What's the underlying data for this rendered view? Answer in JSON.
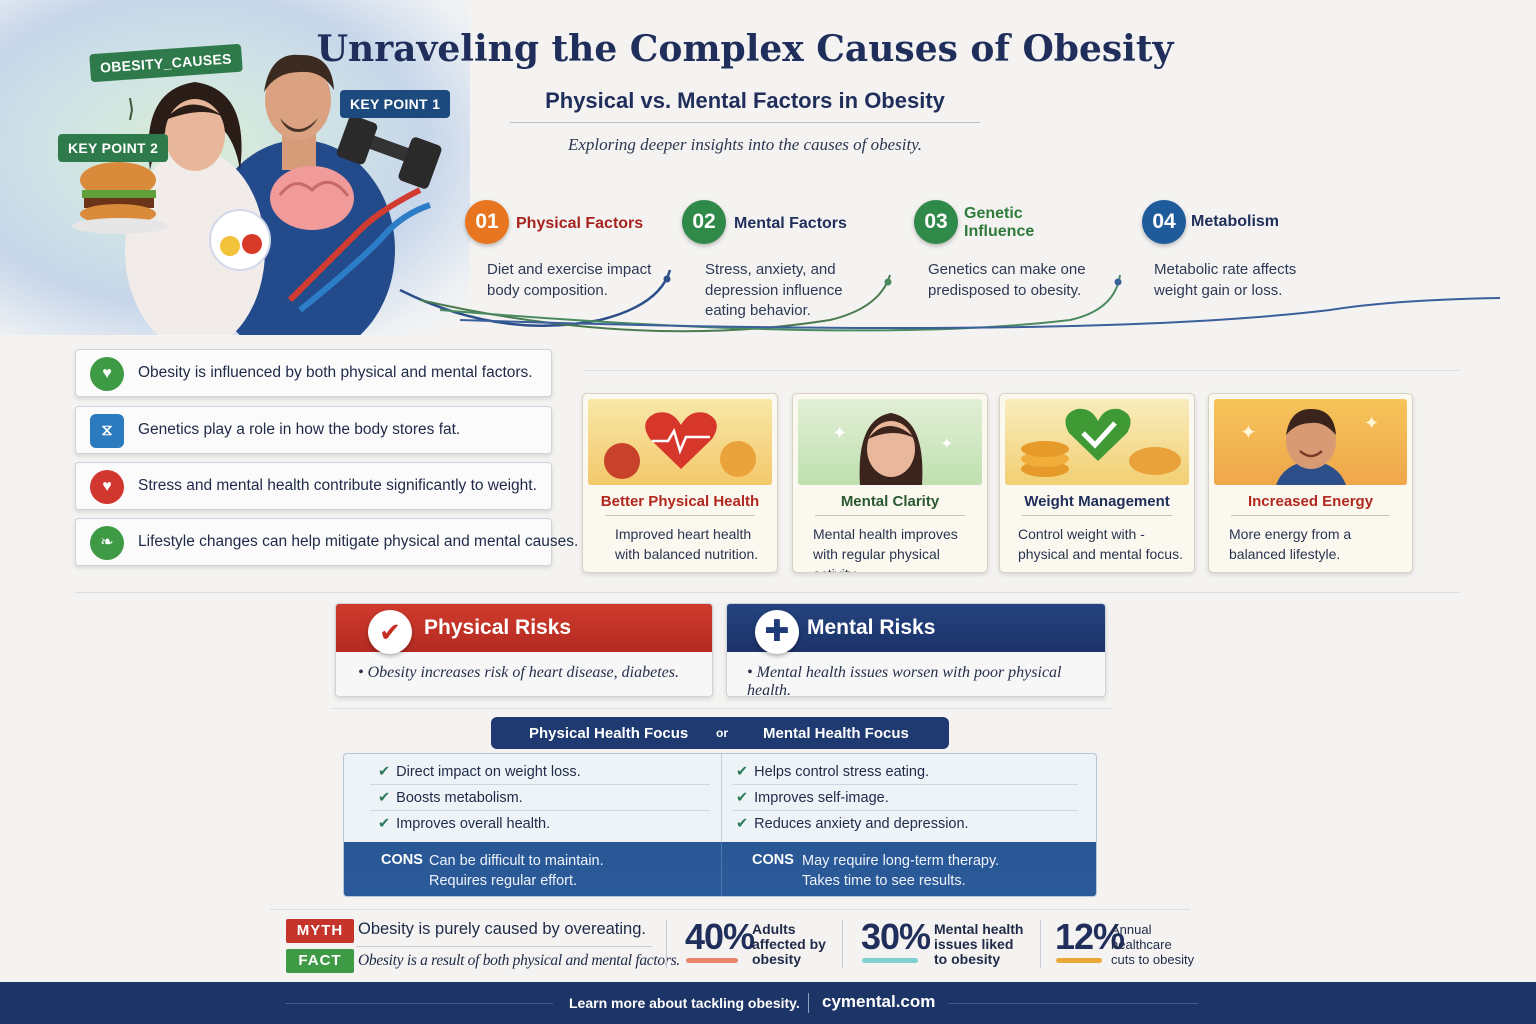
{
  "hero": {
    "tag_causes": "OBESITY_CAUSES",
    "tag_key1": "KEY POINT 1",
    "tag_key2": "KEY POINT 2"
  },
  "header": {
    "title": "Unraveling the Complex Causes of Obesity",
    "subtitle": "Physical vs. Mental Factors in Obesity",
    "tagline": "Exploring deeper insights into the causes of obesity."
  },
  "steps": [
    {
      "number": "01",
      "title": "Physical Factors",
      "desc": "Diet and exercise impact body composition.",
      "color": "#e8751f",
      "title_color": "#a8231e"
    },
    {
      "number": "02",
      "title": "Mental Factors",
      "desc": "Stress, anxiety, and depression influence eating behavior.",
      "color": "#2f8a49",
      "title_color": "#1f2e5a"
    },
    {
      "number": "03",
      "title": "Genetic Influence",
      "desc": "Genetics can make one predisposed to obesity.",
      "color": "#2f8a49",
      "title_color": "#2f7a3a"
    },
    {
      "number": "04",
      "title": "Metabolism",
      "desc": "Metabolic rate affects weight gain or loss.",
      "color": "#1e5b9a",
      "title_color": "#1f2e5a"
    }
  ],
  "facts": [
    {
      "text": "Obesity is influenced by both physical and mental factors.",
      "icon": "heart-check-icon",
      "color": "#3f9a45"
    },
    {
      "text": "Genetics play a role in how the body stores fat.",
      "icon": "dna-icon",
      "color": "#2d7bbf"
    },
    {
      "text": "Stress and mental health contribute significantly to weight.",
      "icon": "heart-icon",
      "color": "#d1362f"
    },
    {
      "text": "Lifestyle changes can help mitigate physical and mental causes.",
      "icon": "leaf-icon",
      "color": "#3f9a45"
    }
  ],
  "cards": [
    {
      "title": "Better Physical Health",
      "desc": "Improved heart health with balanced nutrition.",
      "title_color": "#b2281f",
      "art": "heart-fruit-icon"
    },
    {
      "title": "Mental Clarity",
      "desc": "Mental health improves with regular physical activity",
      "title_color": "#2a5a30",
      "art": "woman-thinking-icon"
    },
    {
      "title": "Weight Management",
      "desc": "Control weight with - physical and mental focus.",
      "title_color": "#1f2e5a",
      "art": "heart-check-food-icon"
    },
    {
      "title": "Increased Energy",
      "desc": "More energy from a balanced lifestyle.",
      "title_color": "#b2281f",
      "art": "smiling-boy-icon"
    }
  ],
  "risks": {
    "physical": {
      "title": "Physical Risks",
      "text": "Obesity increases risk of heart disease, diabetes.",
      "color": "#c23327"
    },
    "mental": {
      "title": "Mental Risks",
      "text": "Mental health issues worsen with poor physical health.",
      "color": "#1f3a78"
    }
  },
  "comparison": {
    "left_tab": "Physical Health Focus",
    "vs": "or",
    "right_tab": "Mental Health Focus",
    "left_pros": [
      "Direct impact on weight loss.",
      "Boosts metabolism.",
      "Improves overall health."
    ],
    "right_pros": [
      "Helps control stress eating.",
      "Improves self-image.",
      "Reduces anxiety and depression."
    ],
    "cons_label": "CONS",
    "left_cons": [
      "Can be difficult to maintain.",
      "Requires regular effort."
    ],
    "right_cons": [
      "May require long-term therapy.",
      "Takes time to see results."
    ]
  },
  "myth_fact": {
    "myth_label": "MYTH",
    "myth_text": "Obesity is purely caused by overeating.",
    "fact_label": "FACT",
    "fact_text": "Obesity is a result of both physical and mental factors."
  },
  "stats": [
    {
      "value": "40%",
      "label": "Adults affected by obesity",
      "bar_color": "#e9836b"
    },
    {
      "value": "30%",
      "label": "Mental health issues liked to obesity",
      "bar_color": "#7fd0d0"
    },
    {
      "value": "12%",
      "label": "Annual healthcare cuts to obesity",
      "bar_color": "#e8a83a"
    }
  ],
  "footer": {
    "cta": "Learn more about tackling obesity.",
    "url": "cymental.com"
  }
}
